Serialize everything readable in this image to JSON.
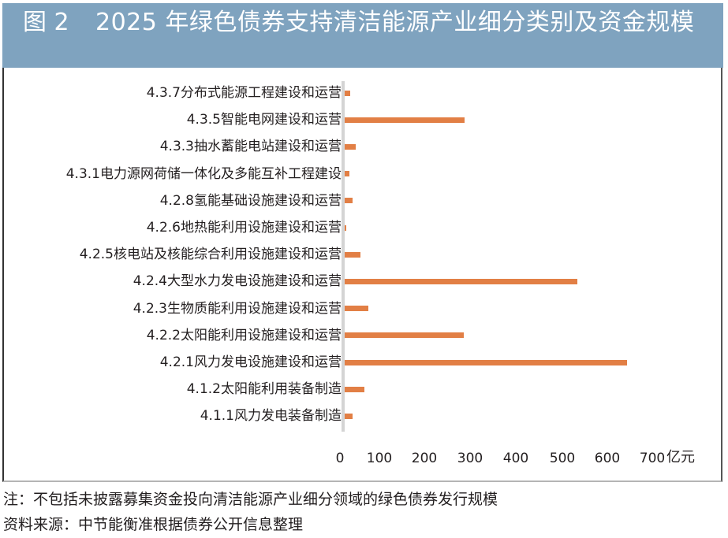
{
  "header": {
    "figure_number": "图 2",
    "title": "2025 年绿色债券支持清洁能源产业细分类别及资金规模"
  },
  "colors": {
    "header_bg": "#7fa3bf",
    "bar": "#e27f45",
    "axis": "#d4d4d4"
  },
  "chart_data": {
    "type": "bar",
    "orientation": "horizontal",
    "title": "2025 年绿色债券支持清洁能源产业细分类别及资金规模",
    "xlabel": "亿元",
    "ylabel": "",
    "xlim": [
      0,
      700
    ],
    "x_ticks": [
      "0",
      "100",
      "200",
      "300",
      "400",
      "500",
      "600",
      "700"
    ],
    "grid": false,
    "legend": null,
    "categories": [
      "4.3.7分布式能源工程建设和运营",
      "4.3.5智能电网建设和运营",
      "4.3.3抽水蓄能电站建设和运营",
      "4.3.1电力源网荷储一体化及多能互补工程建设",
      "4.2.8氢能基础设施建设和运营",
      "4.2.6地热能利用设施建设和运营",
      "4.2.5核电站及核能综合利用设施建设和运营",
      "4.2.4大型水力发电设施建设和运营",
      "4.2.3生物质能利用设施建设和运营",
      "4.2.2太阳能利用设施建设和运营",
      "4.2.1风力发电设施建设和运营",
      "4.1.2太阳能利用装备制造",
      "4.1.1风力发电装备制造"
    ],
    "values": [
      12,
      263,
      24,
      10,
      17,
      3,
      35,
      510,
      52,
      261,
      619,
      43,
      17
    ],
    "unit": "亿元"
  },
  "notes": {
    "note": "注：不包括未披露募集资金投向清洁能源产业细分领域的绿色债券发行规模",
    "source": "资料来源：中节能衡准根据债券公开信息整理"
  }
}
